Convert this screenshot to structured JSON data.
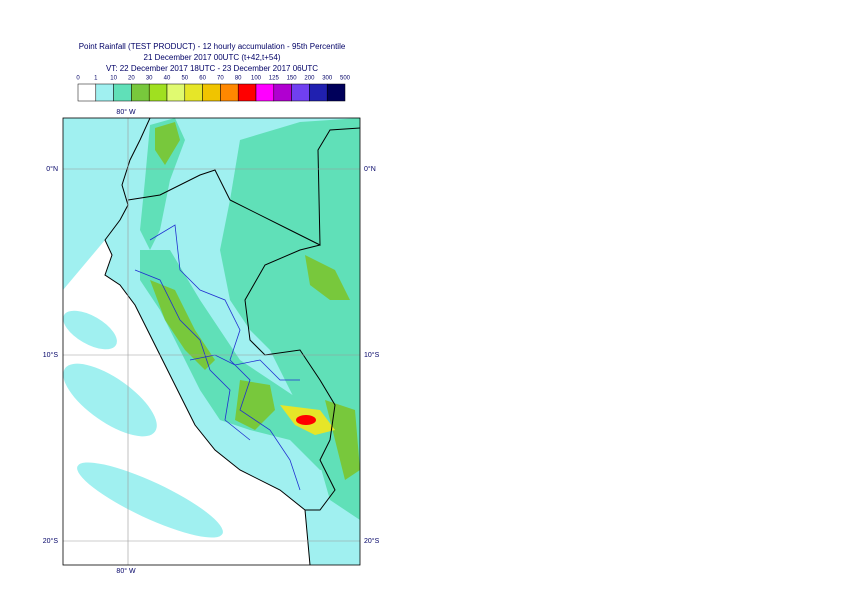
{
  "header": {
    "title": "Point Rainfall (TEST PRODUCT) - 12 hourly accumulation - 95th Percentile",
    "base": "21 December 2017 00UTC (t+42,t+54)",
    "validity": "VT: 22 December 2017 18UTC - 23 December 2017 06UTC"
  },
  "legend": {
    "labels": [
      0,
      1,
      10,
      20,
      30,
      40,
      50,
      60,
      70,
      80,
      100,
      125,
      150,
      200,
      300,
      500
    ],
    "colors": [
      "#ffffff",
      "#a0f0f0",
      "#60e0b8",
      "#78c83c",
      "#a0e020",
      "#e0fa70",
      "#e6e628",
      "#f0c400",
      "#ff8800",
      "#ff0000",
      "#ff00ff",
      "#b000d0",
      "#7040f0",
      "#2020b0",
      "#00005a"
    ]
  },
  "map": {
    "lon_labels": [
      "80° W"
    ],
    "lat_labels": [
      "0°N",
      "10°S",
      "20°S"
    ]
  }
}
